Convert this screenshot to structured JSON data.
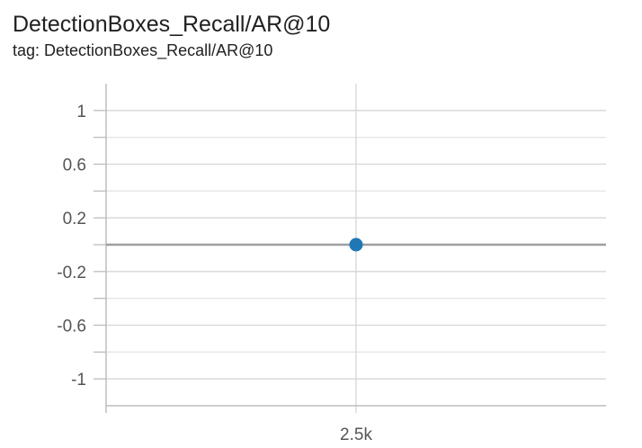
{
  "card": {
    "title": "DetectionBoxes_Recall/AR@10",
    "tag": "tag: DetectionBoxes_Recall/AR@10"
  },
  "chart_data": {
    "type": "line",
    "title": "DetectionBoxes_Recall/AR@10",
    "subtitle": "tag: DetectionBoxes_Recall/AR@10",
    "xlabel": "",
    "ylabel": "",
    "x_ticks": [
      {
        "value": 2500,
        "label": "2.5k"
      }
    ],
    "y_ticks": [
      {
        "value": 1,
        "label": "1"
      },
      {
        "value": 0.6,
        "label": "0.6"
      },
      {
        "value": 0.2,
        "label": "0.2"
      },
      {
        "value": -0.2,
        "label": "-0.2"
      },
      {
        "value": -0.6,
        "label": "-0.6"
      },
      {
        "value": -1,
        "label": "-1"
      }
    ],
    "ylim": [
      -1.2,
      1.2
    ],
    "xlim": [
      0,
      5000
    ],
    "grid": true,
    "series": [
      {
        "x": [
          2500
        ],
        "y": [
          0
        ],
        "color": "#1f77b4"
      }
    ]
  }
}
